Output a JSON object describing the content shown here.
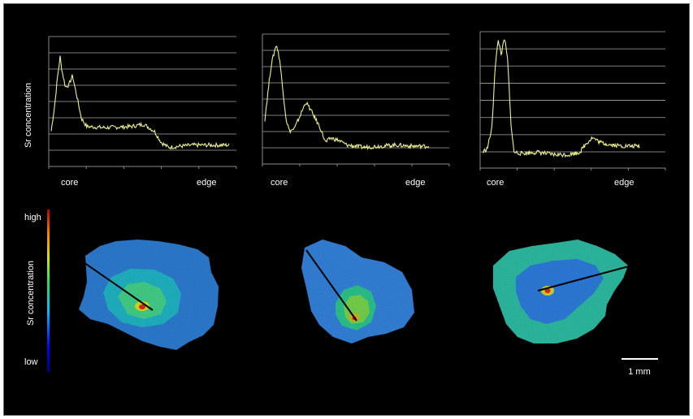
{
  "colors": {
    "background": "#000000",
    "trace": "#f0f08c",
    "axis": "#8a8a8a",
    "gridline": "#a8a8a8",
    "text": "#ffffff",
    "transect": "#000000"
  },
  "profiles": {
    "y_axis_label": "Sr concentration",
    "x_start_label": "core",
    "x_end_label": "edge",
    "charts": [
      {
        "series": [
          [
            0,
            0.22
          ],
          [
            0.02,
            0.45
          ],
          [
            0.035,
            0.68
          ],
          [
            0.05,
            0.86
          ],
          [
            0.06,
            0.75
          ],
          [
            0.08,
            0.6
          ],
          [
            0.1,
            0.62
          ],
          [
            0.12,
            0.7
          ],
          [
            0.13,
            0.62
          ],
          [
            0.15,
            0.48
          ],
          [
            0.17,
            0.33
          ],
          [
            0.2,
            0.26
          ],
          [
            0.3,
            0.25
          ],
          [
            0.45,
            0.26
          ],
          [
            0.52,
            0.28
          ],
          [
            0.58,
            0.22
          ],
          [
            0.62,
            0.12
          ],
          [
            0.66,
            0.08
          ],
          [
            0.72,
            0.09
          ],
          [
            0.8,
            0.1
          ],
          [
            0.9,
            0.1
          ],
          [
            1,
            0.1
          ]
        ]
      },
      {
        "series": [
          [
            0,
            0.3
          ],
          [
            0.02,
            0.55
          ],
          [
            0.04,
            0.78
          ],
          [
            0.07,
            0.95
          ],
          [
            0.09,
            0.82
          ],
          [
            0.11,
            0.55
          ],
          [
            0.13,
            0.3
          ],
          [
            0.15,
            0.2
          ],
          [
            0.18,
            0.22
          ],
          [
            0.22,
            0.35
          ],
          [
            0.25,
            0.45
          ],
          [
            0.28,
            0.38
          ],
          [
            0.31,
            0.3
          ],
          [
            0.34,
            0.22
          ],
          [
            0.37,
            0.1
          ],
          [
            0.4,
            0.14
          ],
          [
            0.45,
            0.12
          ],
          [
            0.5,
            0.08
          ],
          [
            0.6,
            0.06
          ],
          [
            0.7,
            0.07
          ],
          [
            0.8,
            0.08
          ],
          [
            0.9,
            0.07
          ],
          [
            1,
            0.07
          ]
        ]
      },
      {
        "series": [
          [
            0,
            0.05
          ],
          [
            0.03,
            0.08
          ],
          [
            0.06,
            0.25
          ],
          [
            0.08,
            0.75
          ],
          [
            0.1,
            0.96
          ],
          [
            0.12,
            0.85
          ],
          [
            0.14,
            0.98
          ],
          [
            0.16,
            0.8
          ],
          [
            0.18,
            0.3
          ],
          [
            0.2,
            0.05
          ],
          [
            0.25,
            0.04
          ],
          [
            0.35,
            0.05
          ],
          [
            0.45,
            0.03
          ],
          [
            0.55,
            0.03
          ],
          [
            0.62,
            0.05
          ],
          [
            0.66,
            0.12
          ],
          [
            0.7,
            0.17
          ],
          [
            0.75,
            0.13
          ],
          [
            0.82,
            0.11
          ],
          [
            0.9,
            0.1
          ],
          [
            1,
            0.1
          ]
        ]
      }
    ]
  },
  "maps": {
    "colorbar_label": "Sr concentration",
    "high_label": "high",
    "low_label": "low",
    "scale_bar_label": "1 mm",
    "colormap": "jet"
  }
}
